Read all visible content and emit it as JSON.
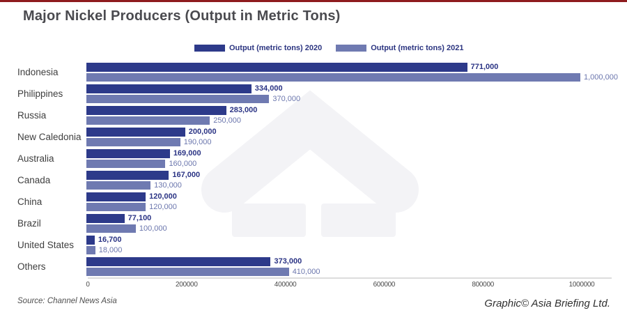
{
  "page": {
    "accent_line_color": "#8e1b1e",
    "background_color": "#ffffff",
    "watermark_color": "#f3f3f6"
  },
  "title": "Major Nickel Producers (Output in Metric Tons)",
  "legend": [
    {
      "label": "Output (metric tons) 2020",
      "color": "#2d3a8a"
    },
    {
      "label": "Output (metric tons) 2021",
      "color": "#6f7ab1"
    }
  ],
  "source": "Source: Channel News Asia",
  "credit": "Graphic© Asia Briefing Ltd.",
  "chart_data": {
    "type": "bar",
    "orientation": "horizontal",
    "title": "Major Nickel Producers (Output in Metric Tons)",
    "categories": [
      "Indonesia",
      "Philippines",
      "Russia",
      "New Caledonia",
      "Australia",
      "Canada",
      "China",
      "Brazil",
      "United States",
      "Others"
    ],
    "series": [
      {
        "name": "Output (metric tons) 2020",
        "color": "#2d3a8a",
        "label_color": "#2a3384",
        "values": [
          771000,
          334000,
          283000,
          200000,
          169000,
          167000,
          120000,
          77100,
          16700,
          373000
        ],
        "labels": [
          "771,000",
          "334,000",
          "283,000",
          "200,000",
          "169,000",
          "167,000",
          "120,000",
          "77,100",
          "16,700",
          "373,000"
        ]
      },
      {
        "name": "Output (metric tons) 2021",
        "color": "#6f7ab1",
        "label_color": "#6b76ad",
        "values": [
          1000000,
          370000,
          250000,
          190000,
          160000,
          130000,
          120000,
          100000,
          18000,
          410000
        ],
        "labels": [
          "1,000,000",
          "370,000",
          "250,000",
          "190,000",
          "160,000",
          "130,000",
          "120,000",
          "100,000",
          "18,000",
          "410,000"
        ]
      }
    ],
    "xlim": [
      0,
      1000000
    ],
    "x_ticks": [
      0,
      200000,
      400000,
      600000,
      800000,
      1000000
    ],
    "x_tick_labels": [
      "0",
      "200000",
      "400000",
      "600000",
      "800000",
      "1000000"
    ],
    "grid": false,
    "legend_position": "top-center",
    "value_labels_shown": true
  }
}
